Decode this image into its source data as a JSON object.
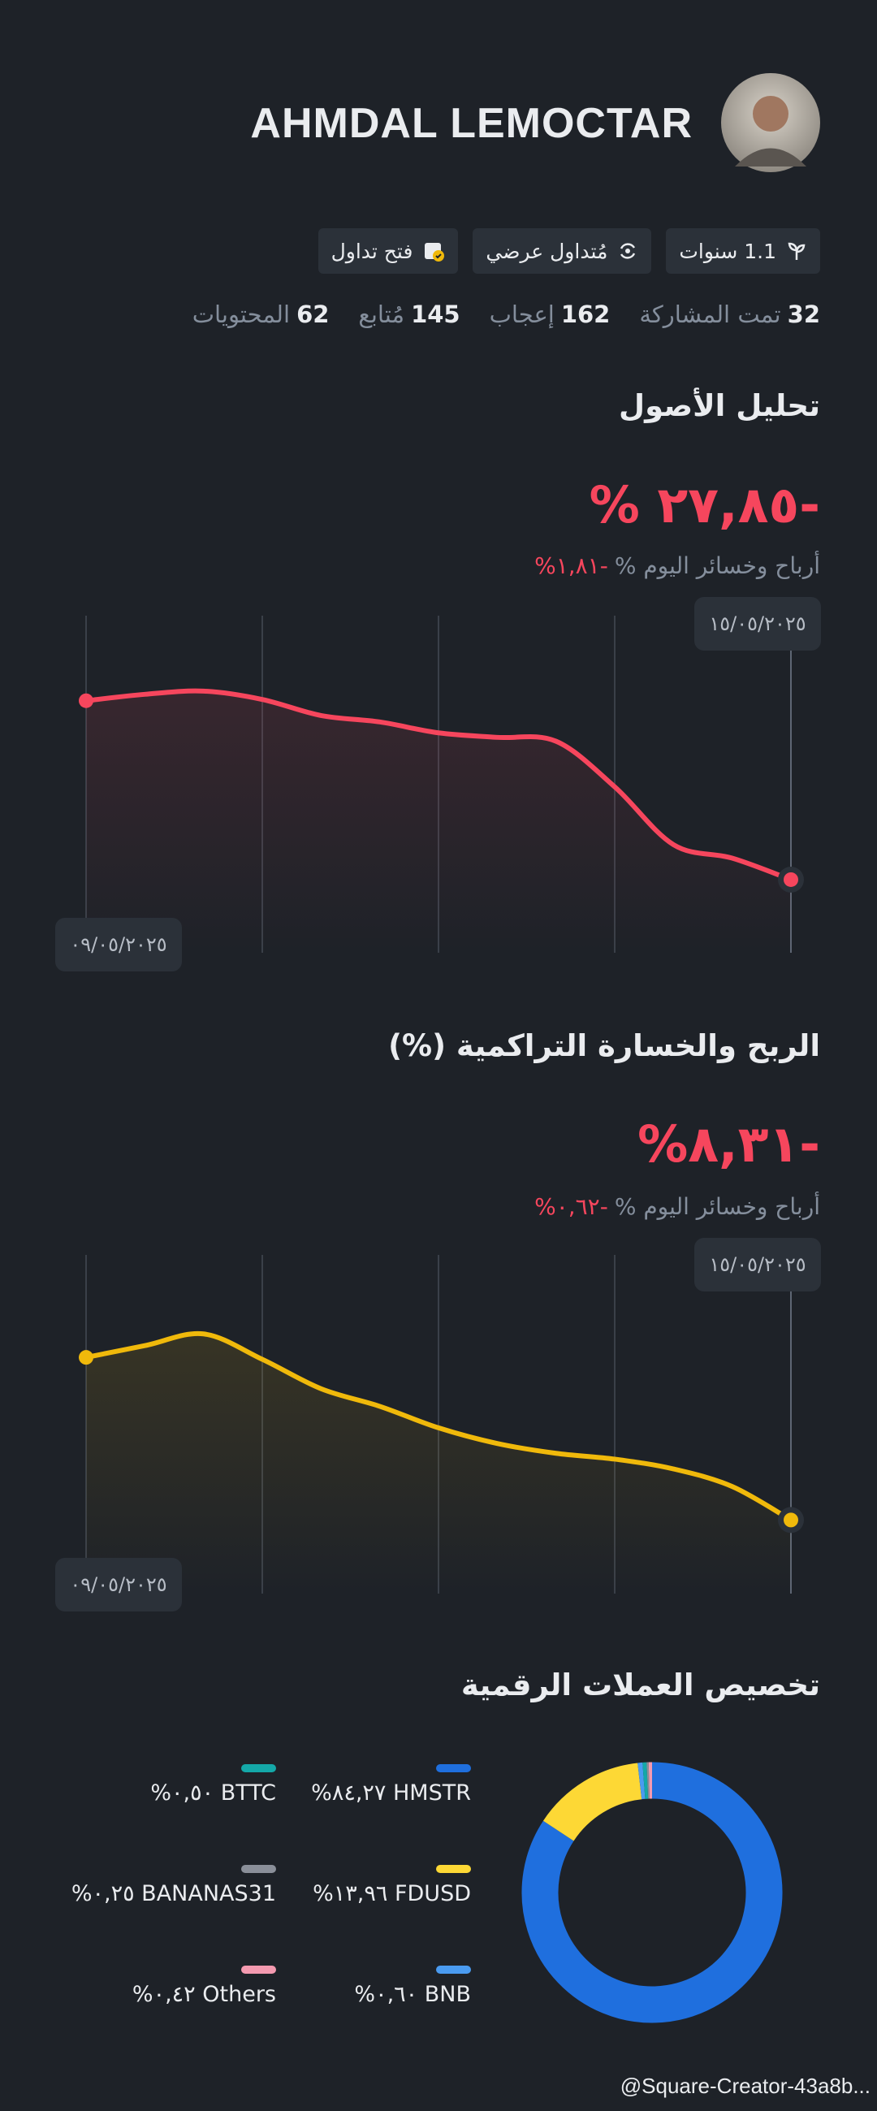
{
  "profile": {
    "name": "AHMDAL LEMOCTAR",
    "badges": [
      "1.1 سنوات",
      "مُتداول عرضي",
      "فتح تداول"
    ],
    "stats": [
      {
        "value": "32",
        "label": "تمت المشاركة"
      },
      {
        "value": "162",
        "label": "إعجاب"
      },
      {
        "value": "145",
        "label": "مُتابع"
      },
      {
        "value": "62",
        "label": "المحتويات"
      }
    ]
  },
  "chart_data": [
    {
      "type": "line",
      "title": "تحليل الأصول",
      "headline": "% ٢٧,٨٥-",
      "subtitle": "أرباح وخسائر اليوم %",
      "subtitle_value": "%١,٨١-",
      "categories": [
        "٠٩/٠٥/٢٠٢٥",
        null,
        null,
        null,
        null,
        null,
        null,
        null,
        null,
        null,
        null,
        null,
        "١٥/٠٥/٢٠٢٥"
      ],
      "values": [
        0,
        1.0,
        1.5,
        0.2,
        -2.3,
        -3.3,
        -5.0,
        -5.7,
        -6.3,
        -13.4,
        -22.4,
        -24.5,
        -27.85
      ],
      "ylim": [
        -30,
        3
      ],
      "color": "#f6465d"
    },
    {
      "type": "line",
      "title": "الربح والخسارة التراكمية (%)",
      "headline": "%٨,٣١-",
      "subtitle": "أرباح وخسائر اليوم %",
      "subtitle_value": "%٠,٦٢-",
      "categories": [
        "٠٩/٠٥/٢٠٢٥",
        null,
        null,
        null,
        null,
        null,
        null,
        null,
        null,
        null,
        null,
        null,
        "١٥/٠٥/٢٠٢٥"
      ],
      "values": [
        0,
        0.6,
        1.2,
        -0.1,
        -1.6,
        -2.5,
        -3.6,
        -4.4,
        -4.9,
        -5.2,
        -5.7,
        -6.6,
        -8.31
      ],
      "ylim": [
        -9,
        2
      ],
      "color": "#f0b90b"
    },
    {
      "type": "pie",
      "title": "تخصيص العملات الرقمية",
      "series": [
        {
          "name": "HMSTR",
          "color": "#1f6fde",
          "values": [
            84.27
          ],
          "value_labels": [
            "%٨٤,٢٧"
          ]
        },
        {
          "name": "FDUSD",
          "color": "#fdd835",
          "values": [
            13.96
          ],
          "value_labels": [
            "%١٣,٩٦"
          ]
        },
        {
          "name": "BNB",
          "color": "#4a9bf0",
          "values": [
            0.6
          ],
          "value_labels": [
            "%٠,٦٠"
          ]
        },
        {
          "name": "BTTC",
          "color": "#14a8a8",
          "values": [
            0.5
          ],
          "value_labels": [
            "%٠,٥٠"
          ]
        },
        {
          "name": "BANANAS31",
          "color": "#8a8f99",
          "values": [
            0.25
          ],
          "value_labels": [
            "%٠,٢٥"
          ]
        },
        {
          "name": "Others",
          "color": "#f49ab0",
          "values": [
            0.42
          ],
          "value_labels": [
            "%٠,٤٢"
          ]
        }
      ]
    }
  ],
  "footer": "@Square-Creator-43a8b..."
}
